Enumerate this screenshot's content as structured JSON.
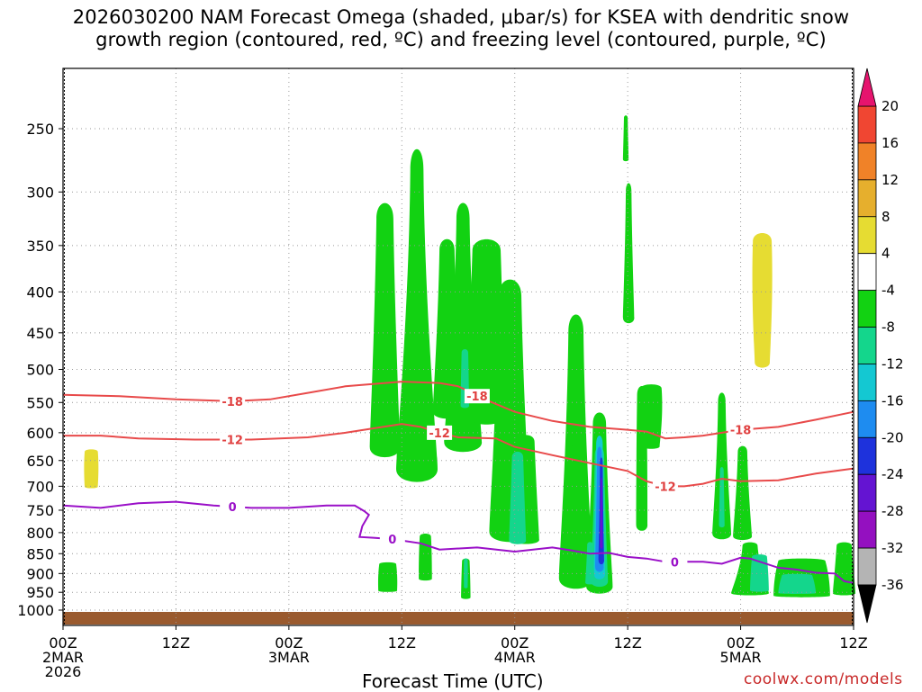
{
  "title": {
    "line1": "2026030200 NAM Forecast Omega (shaded, μbar/s) for KSEA with dendritic snow",
    "line2": "growth region (contoured, red, ºC) and freezing level (contoured, purple, ºC)"
  },
  "xlabel": "Forecast Time (UTC)",
  "credit": "coolwx.com/models",
  "chart_data": {
    "type": "heatmap",
    "station": "KSEA",
    "variable": "Omega (μbar/s)",
    "x_ticks": [
      {
        "hour": 0,
        "label": "00Z",
        "date": "2MAR",
        "year": "2026"
      },
      {
        "hour": 12,
        "label": "12Z"
      },
      {
        "hour": 24,
        "label": "00Z",
        "date": "3MAR"
      },
      {
        "hour": 36,
        "label": "12Z"
      },
      {
        "hour": 48,
        "label": "00Z",
        "date": "4MAR"
      },
      {
        "hour": 60,
        "label": "12Z"
      },
      {
        "hour": 72,
        "label": "00Z",
        "date": "5MAR"
      },
      {
        "hour": 84,
        "label": "12Z"
      }
    ],
    "x_range_hours": [
      0,
      84
    ],
    "y_ticks": [
      250,
      300,
      350,
      400,
      450,
      500,
      550,
      600,
      650,
      700,
      750,
      800,
      850,
      900,
      950,
      1000
    ],
    "y_range_mb": [
      200,
      1025
    ],
    "y_scale": "log",
    "grid": true,
    "colorbar": {
      "levels": [
        -36,
        -32,
        -28,
        -24,
        -20,
        -16,
        -12,
        -8,
        -4,
        4,
        8,
        12,
        16,
        20
      ],
      "colors": [
        "#000000",
        "#b4b4b4",
        "#9410c0",
        "#6414d2",
        "#1e32dc",
        "#1e8cf0",
        "#14c8d2",
        "#14d68c",
        "#12d212",
        "#ffffff",
        "#e6dc32",
        "#e6af2d",
        "#f08228",
        "#f04632",
        "#e6146e"
      ],
      "triangle_top_color": "#e6146e",
      "triangle_bottom_color": "#000000"
    },
    "contours": {
      "dgz_minus18": {
        "color": "#e84a4a",
        "label": "-18",
        "points": [
          [
            0,
            538
          ],
          [
            6,
            540
          ],
          [
            12,
            545
          ],
          [
            18,
            548
          ],
          [
            22,
            545
          ],
          [
            26,
            535
          ],
          [
            30,
            525
          ],
          [
            36,
            518
          ],
          [
            40,
            520
          ],
          [
            42,
            525
          ],
          [
            43,
            532
          ],
          [
            44,
            540
          ],
          [
            48,
            565
          ],
          [
            52,
            580
          ],
          [
            56,
            590
          ],
          [
            60,
            595
          ],
          [
            62,
            598
          ],
          [
            64,
            610
          ],
          [
            66,
            608
          ],
          [
            68,
            605
          ],
          [
            72,
            595
          ],
          [
            76,
            590
          ],
          [
            80,
            578
          ],
          [
            84,
            565
          ]
        ],
        "label_hours": [
          18,
          44,
          72
        ]
      },
      "dgz_minus12": {
        "color": "#e84a4a",
        "label": "-12",
        "points": [
          [
            0,
            605
          ],
          [
            4,
            605
          ],
          [
            8,
            610
          ],
          [
            14,
            612
          ],
          [
            20,
            612
          ],
          [
            26,
            608
          ],
          [
            30,
            600
          ],
          [
            34,
            590
          ],
          [
            36,
            585
          ],
          [
            38,
            590
          ],
          [
            40,
            600
          ],
          [
            42,
            608
          ],
          [
            46,
            610
          ],
          [
            48,
            625
          ],
          [
            52,
            640
          ],
          [
            56,
            655
          ],
          [
            60,
            670
          ],
          [
            62,
            690
          ],
          [
            64,
            700
          ],
          [
            66,
            700
          ],
          [
            68,
            695
          ],
          [
            70,
            685
          ],
          [
            72,
            690
          ],
          [
            76,
            688
          ],
          [
            80,
            675
          ],
          [
            84,
            665
          ]
        ],
        "label_hours": [
          18,
          40,
          64
        ]
      },
      "freezing_0": {
        "color": "#9a10c8",
        "label": "0",
        "points": [
          [
            0,
            740
          ],
          [
            4,
            745
          ],
          [
            8,
            735
          ],
          [
            12,
            732
          ],
          [
            16,
            740
          ],
          [
            20,
            745
          ],
          [
            24,
            745
          ],
          [
            28,
            740
          ],
          [
            31,
            740
          ],
          [
            32,
            752
          ],
          [
            32.5,
            760
          ],
          [
            31.8,
            785
          ],
          [
            31.5,
            810
          ],
          [
            33,
            812
          ],
          [
            35,
            815
          ],
          [
            38,
            825
          ],
          [
            40,
            840
          ],
          [
            44,
            835
          ],
          [
            48,
            845
          ],
          [
            52,
            835
          ],
          [
            54,
            842
          ],
          [
            56,
            850
          ],
          [
            58,
            848
          ],
          [
            60,
            858
          ],
          [
            62,
            862
          ],
          [
            64,
            870
          ],
          [
            68,
            870
          ],
          [
            70,
            875
          ],
          [
            72,
            860
          ],
          [
            73,
            862
          ],
          [
            76,
            885
          ],
          [
            78,
            890
          ],
          [
            80,
            898
          ],
          [
            82,
            900
          ],
          [
            83,
            920
          ],
          [
            84,
            925
          ]
        ],
        "label_hours": [
          18,
          35,
          65
        ]
      }
    }
  }
}
